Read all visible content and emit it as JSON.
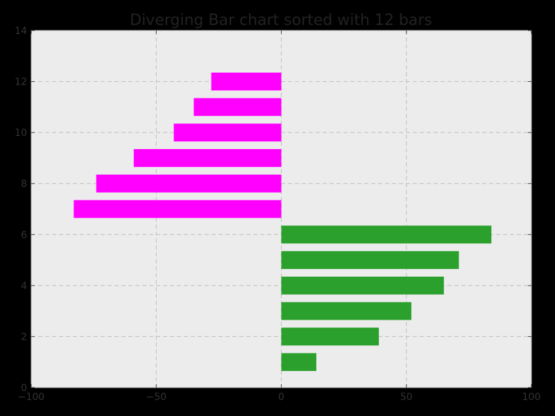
{
  "chart_data": {
    "type": "bar",
    "orientation": "horizontal",
    "title": "Diverging Bar chart sorted with 12 bars",
    "xlabel": "",
    "ylabel": "",
    "xlim": [
      -100,
      100
    ],
    "ylim": [
      0,
      14
    ],
    "x_ticks": [
      -100,
      -50,
      0,
      50,
      100
    ],
    "x_tick_labels": [
      "−100",
      "−50",
      "0",
      "50",
      "100"
    ],
    "y_ticks": [
      0,
      2,
      4,
      6,
      8,
      10,
      12,
      14
    ],
    "y_tick_labels": [
      "0",
      "2",
      "4",
      "6",
      "8",
      "10",
      "12",
      "14"
    ],
    "grid": true,
    "colors": {
      "positive": "#2ca02c",
      "negative": "#ff00ff",
      "plot_background": "#ececec",
      "figure_background": "#000000",
      "axis_frame": "#bbbbbb"
    },
    "bars": [
      {
        "y": 1,
        "value": 14
      },
      {
        "y": 2,
        "value": 39
      },
      {
        "y": 3,
        "value": 52
      },
      {
        "y": 4,
        "value": 65
      },
      {
        "y": 5,
        "value": 71
      },
      {
        "y": 6,
        "value": 84
      },
      {
        "y": 7,
        "value": -83
      },
      {
        "y": 8,
        "value": -74
      },
      {
        "y": 9,
        "value": -59
      },
      {
        "y": 10,
        "value": -43
      },
      {
        "y": 11,
        "value": -35
      },
      {
        "y": 12,
        "value": -28
      }
    ]
  }
}
